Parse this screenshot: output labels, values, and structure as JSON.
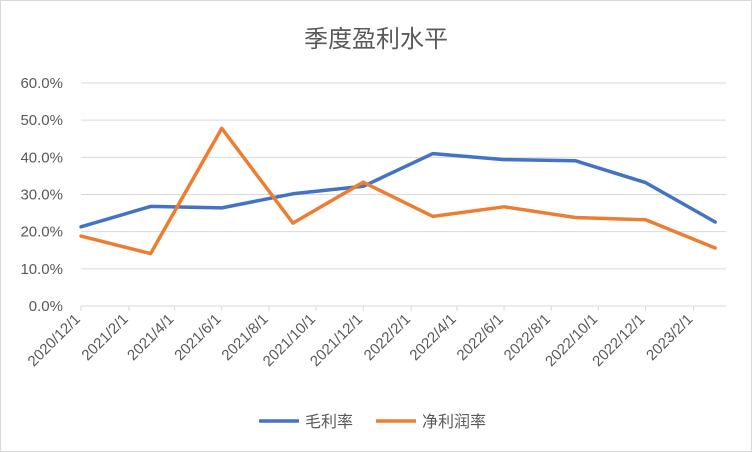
{
  "chart_data": {
    "type": "line",
    "title": "季度盈利水平",
    "x": [
      "2020/12/1",
      "2021/3/1",
      "2021/6/1",
      "2021/9/1",
      "2021/12/1",
      "2022/3/1",
      "2022/6/1",
      "2022/9/1",
      "2022/12/1",
      "2023/3/1"
    ],
    "x_tick_labels": [
      "2020/12/1",
      "2021/2/1",
      "2021/4/1",
      "2021/6/1",
      "2021/8/1",
      "2021/10/1",
      "2021/12/1",
      "2022/2/1",
      "2022/4/1",
      "2022/6/1",
      "2022/8/1",
      "2022/10/1",
      "2022/12/1",
      "2023/2/1"
    ],
    "xlim": [
      "2020/12/1",
      "2023/3/15"
    ],
    "y_tick_labels": [
      "0.0%",
      "10.0%",
      "20.0%",
      "30.0%",
      "40.0%",
      "50.0%",
      "60.0%"
    ],
    "ylim": [
      0,
      0.6
    ],
    "grid": true,
    "legend_position": "bottom",
    "series": [
      {
        "name": "毛利率",
        "color": "#4472C4",
        "values": [
          0.213,
          0.268,
          0.264,
          0.302,
          0.322,
          0.41,
          0.394,
          0.391,
          0.332,
          0.226
        ]
      },
      {
        "name": "净利润率",
        "color": "#ED7D31",
        "values": [
          0.188,
          0.141,
          0.478,
          0.223,
          0.333,
          0.241,
          0.267,
          0.238,
          0.232,
          0.156
        ]
      }
    ]
  }
}
